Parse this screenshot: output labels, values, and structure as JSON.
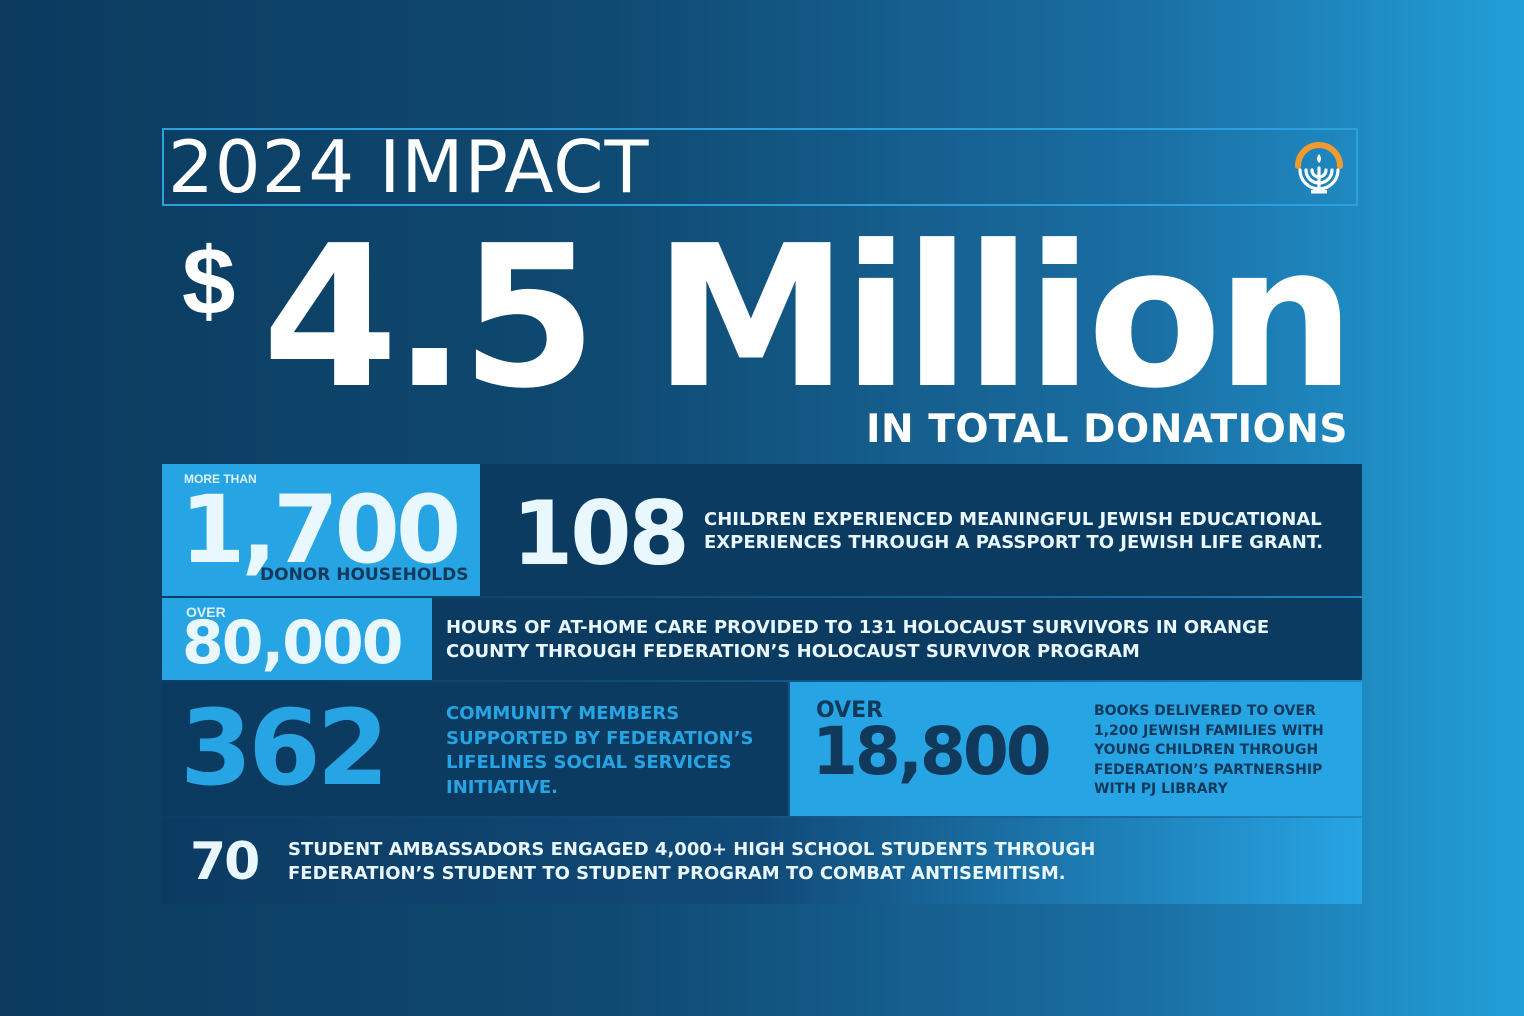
{
  "header": {
    "title": "2024 IMPACT",
    "logo_icon": "menorah-logo-icon"
  },
  "headline": {
    "currency": "$",
    "amount": "4.5 Million",
    "label": "IN TOTAL DONATIONS"
  },
  "stats": {
    "donors": {
      "prefix": "MORE THAN",
      "number": "1,700",
      "label": "DONOR HOUSEHOLDS"
    },
    "children": {
      "number": "108",
      "text": "CHILDREN EXPERIENCED MEANINGFUL JEWISH EDUCATIONAL EXPERIENCES THROUGH A PASSPORT TO JEWISH LIFE GRANT."
    },
    "hours": {
      "prefix": "OVER",
      "number": "80,000",
      "text": "HOURS OF AT-HOME CARE PROVIDED TO 131 HOLOCAUST SURVIVORS IN ORANGE COUNTY THROUGH FEDERATION’S HOLOCAUST SURVIVOR PROGRAM"
    },
    "community": {
      "number": "362",
      "text": "COMMUNITY MEMBERS SUPPORTED BY FEDERATION’S LIFELINES SOCIAL SERVICES INITIATIVE."
    },
    "books": {
      "prefix": "OVER",
      "number": "18,800",
      "text": "BOOKS DELIVERED TO OVER 1,200 JEWISH FAMILIES WITH YOUNG CHILDREN THROUGH FEDERATION’S PARTNERSHIP WITH PJ LIBRARY"
    },
    "ambassadors": {
      "number": "70",
      "text": "STUDENT AMBASSADORS ENGAGED 4,000+ HIGH SCHOOL STUDENTS THROUGH FEDERATION’S STUDENT TO STUDENT PROGRAM TO COMBAT ANTISEMITISM."
    }
  },
  "colors": {
    "background_dark": "#0b3a5e",
    "background_light": "#229fd8",
    "accent_blue": "#27a4e3",
    "panel_navy": "#0c3b62",
    "logo_orange": "#f29a2e"
  }
}
